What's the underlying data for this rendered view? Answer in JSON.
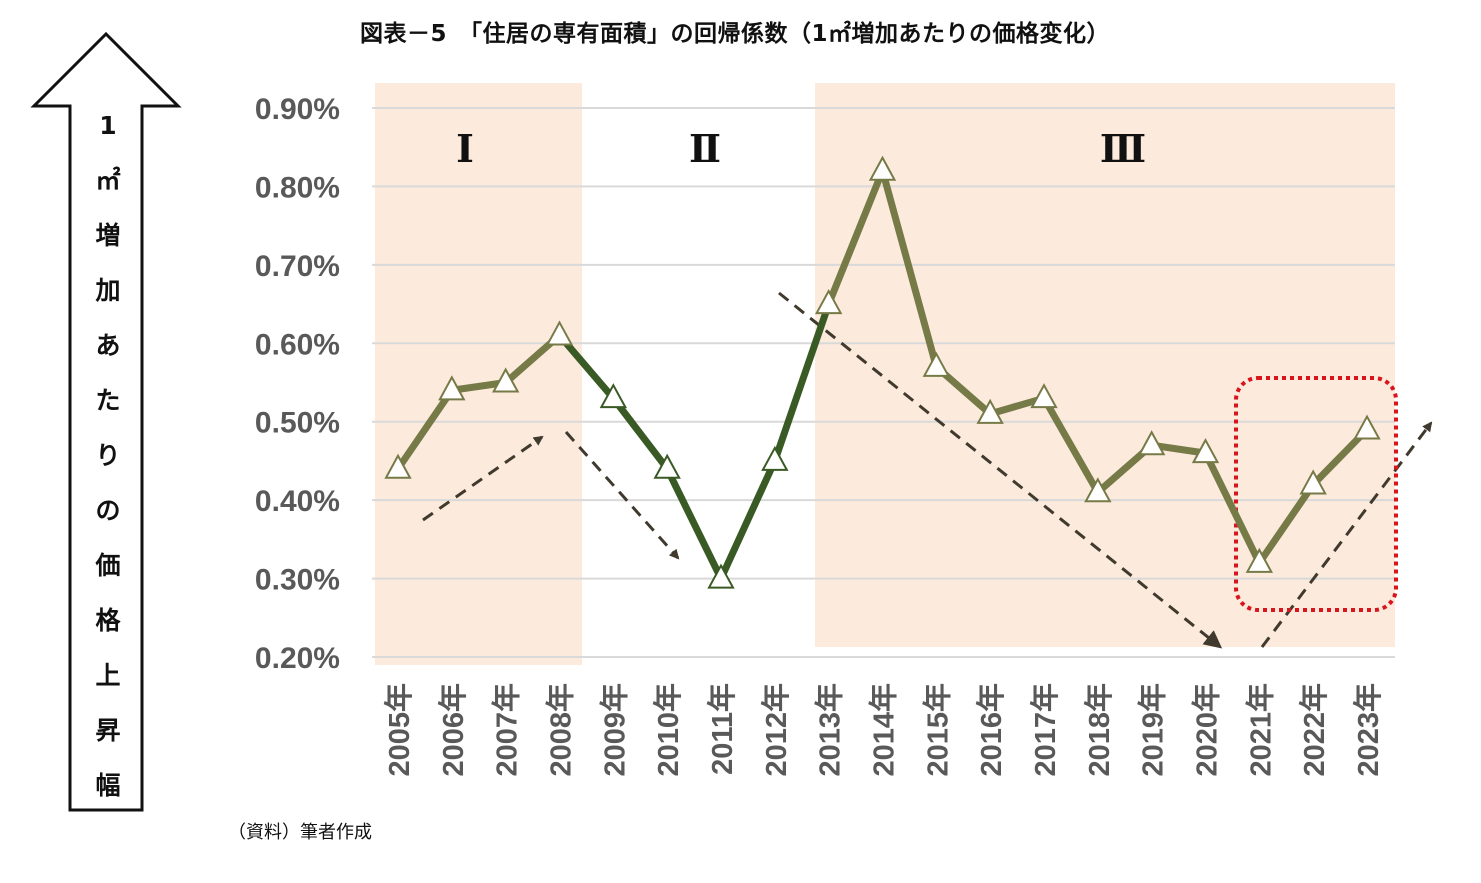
{
  "title": "図表－5　「住居の専有面積」の回帰係数（1㎡増加あたりの価格変化）",
  "source": "（資料）筆者作成",
  "y_axis_arrow_label": [
    "1",
    "㎡",
    "増",
    "加",
    "あ",
    "た",
    "り",
    "の",
    "価",
    "格",
    "上",
    "昇",
    "幅"
  ],
  "colors": {
    "period_shade": "#FCEADC",
    "line_olive": "#767A47",
    "line_dark_green": "#3A5A25",
    "gridline": "#D9D9D9",
    "tick_label": "#595959",
    "trend_arrow": "#40392E",
    "highlight_box": "#D9141C"
  },
  "chart_data": {
    "type": "line",
    "title": "図表－5　「住居の専有面積」の回帰係数（1㎡増加あたりの価格変化）",
    "xlabel": "",
    "ylabel": "1㎡増加あたりの価格上昇幅",
    "ylim": [
      0.002,
      0.009
    ],
    "yticks": [
      "0.90%",
      "0.80%",
      "0.70%",
      "0.60%",
      "0.50%",
      "0.40%",
      "0.30%",
      "0.20%"
    ],
    "grid": true,
    "categories": [
      "2005年",
      "2006年",
      "2007年",
      "2008年",
      "2009年",
      "2010年",
      "2011年",
      "2012年",
      "2013年",
      "2014年",
      "2015年",
      "2016年",
      "2017年",
      "2018年",
      "2019年",
      "2020年",
      "2021年",
      "2022年",
      "2023年"
    ],
    "series": [
      {
        "name": "住居の専有面積の回帰係数",
        "marker": "open-triangle",
        "values": [
          0.44,
          0.54,
          0.55,
          0.61,
          0.53,
          0.44,
          0.3,
          0.45,
          0.65,
          0.82,
          0.57,
          0.51,
          0.53,
          0.41,
          0.47,
          0.46,
          0.32,
          0.42,
          0.49
        ],
        "unit": "%"
      }
    ],
    "periods": [
      {
        "label": "Ⅰ",
        "from": "2005年",
        "to": "2008年",
        "shaded": true
      },
      {
        "label": "Ⅱ",
        "from": "2009年",
        "to": "2012年",
        "shaded": false
      },
      {
        "label": "Ⅲ",
        "from": "2013年",
        "to": "2023年",
        "shaded": true
      }
    ],
    "annotations": [
      {
        "type": "dashed-arrow",
        "direction": "up-right",
        "period": "Ⅰ"
      },
      {
        "type": "dashed-arrow",
        "direction": "down-right",
        "period": "Ⅱ"
      },
      {
        "type": "dashed-arrow",
        "direction": "down-right",
        "period": "Ⅲ"
      },
      {
        "type": "dashed-arrow",
        "direction": "up-right",
        "from": "2021年"
      },
      {
        "type": "dotted-highlight-box",
        "covers": [
          "2021年",
          "2022年",
          "2023年"
        ]
      }
    ]
  }
}
